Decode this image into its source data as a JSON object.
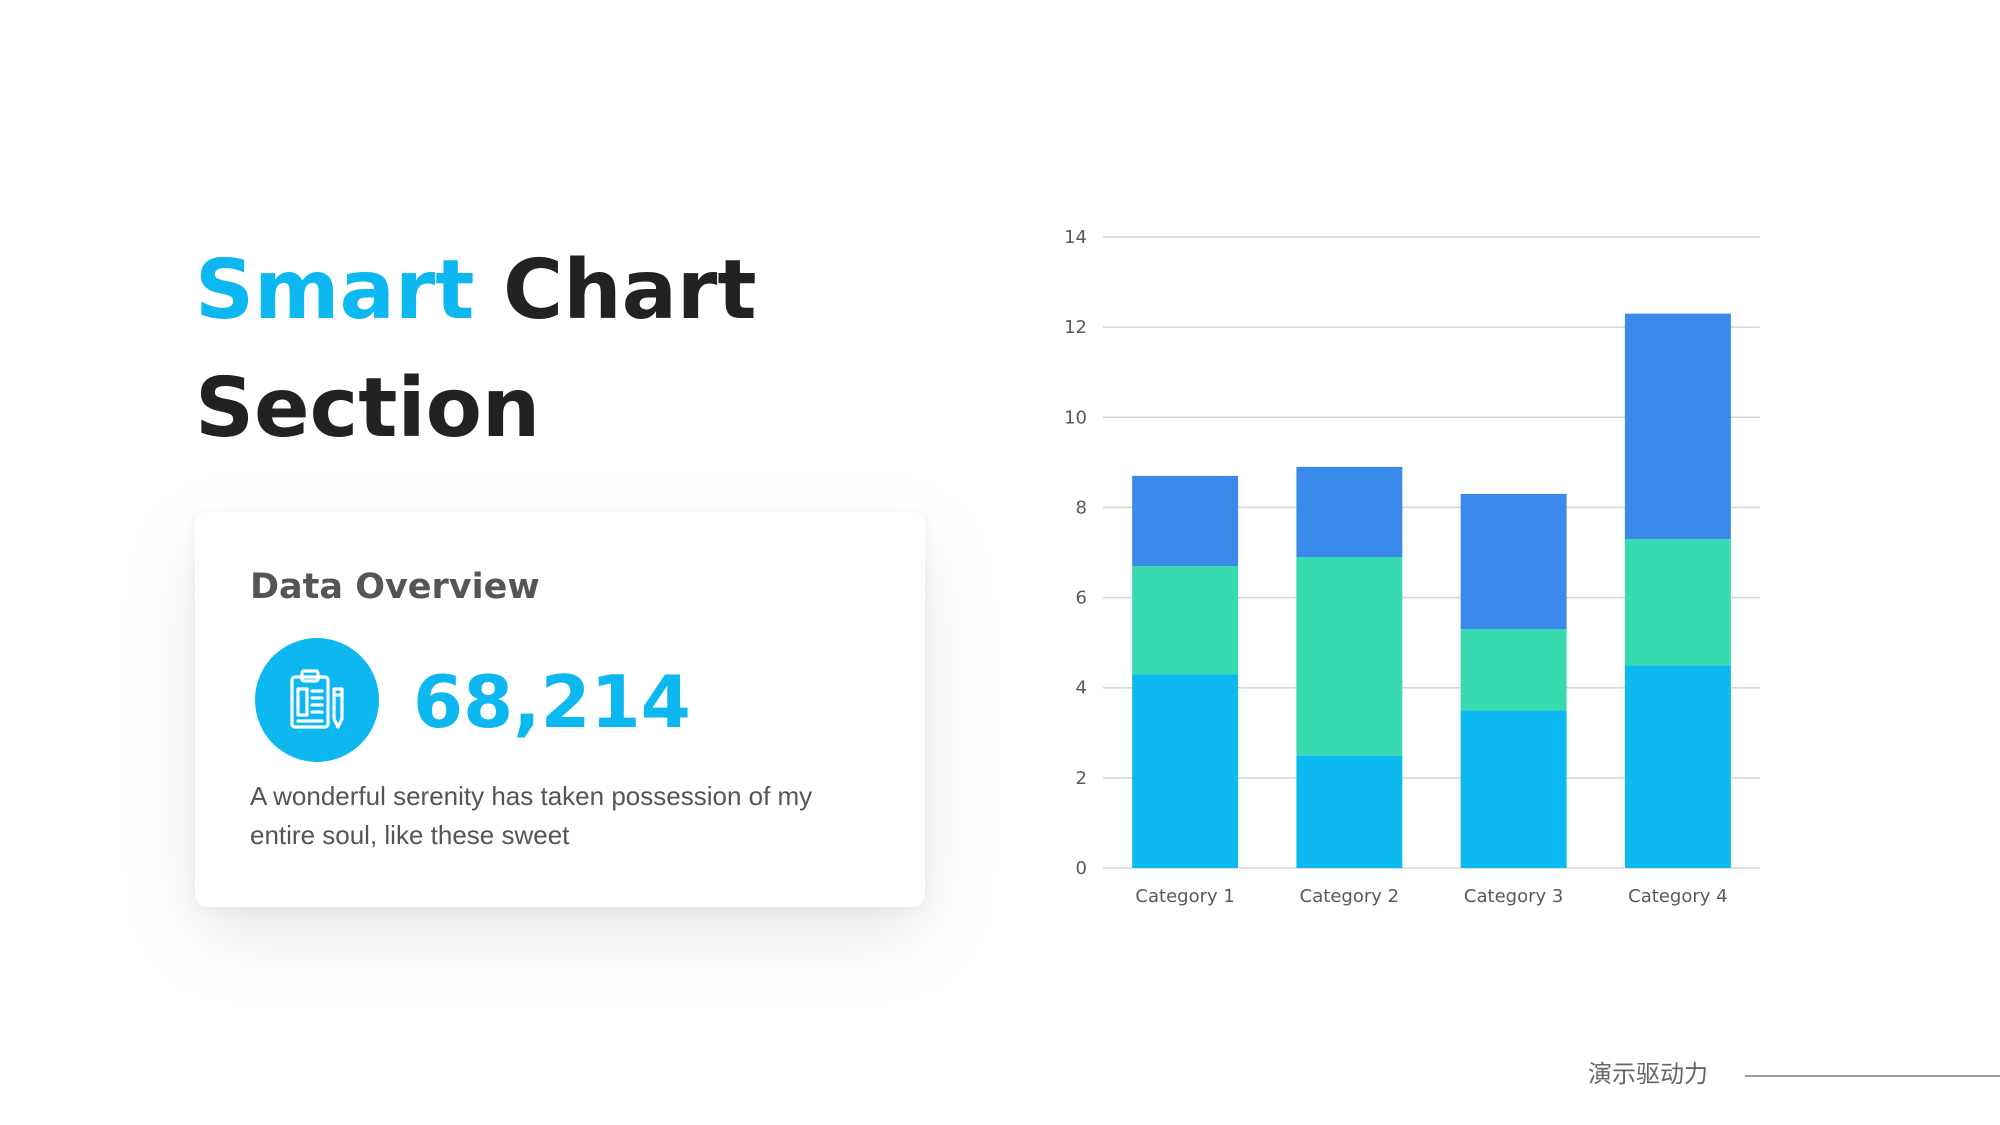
{
  "title": {
    "accent": "Smart",
    "rest": " Chart",
    "line2": "Section"
  },
  "card": {
    "heading": "Data Overview",
    "value": "68,214",
    "description": "A wonderful serenity has taken possession of my entire soul, like these sweet",
    "icon": "clipboard-icon"
  },
  "footer": {
    "text": "演示驱动力"
  },
  "colors": {
    "accent": "#0cb8ef",
    "series1": "#0cbaf0",
    "series2": "#38dab0",
    "series3": "#3a8aec"
  },
  "chart_data": {
    "type": "bar",
    "stacked": true,
    "categories": [
      "Category 1",
      "Category 2",
      "Category 3",
      "Category 4"
    ],
    "series": [
      {
        "values": [
          4.3,
          2.5,
          3.5,
          4.5
        ],
        "color": "#0cbaf0"
      },
      {
        "values": [
          2.4,
          4.4,
          1.8,
          2.8
        ],
        "color": "#38dab0"
      },
      {
        "values": [
          2.0,
          2.0,
          3.0,
          5.0
        ],
        "color": "#3a8aec"
      }
    ],
    "ylim": [
      0,
      14
    ],
    "yticks": [
      0,
      2,
      4,
      6,
      8,
      10,
      12,
      14
    ],
    "grid": true,
    "title": "",
    "xlabel": "",
    "ylabel": ""
  }
}
